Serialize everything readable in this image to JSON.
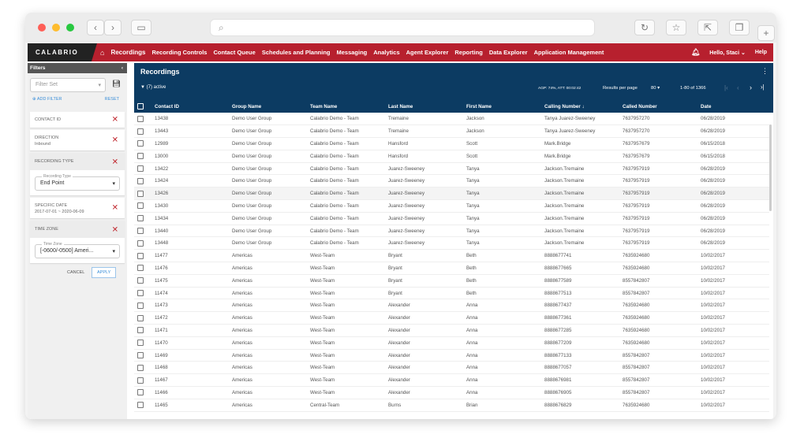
{
  "browser": {
    "back": "‹",
    "forward": "›",
    "search_icon": "⌕"
  },
  "nav": {
    "logo": "CALABRIO",
    "items": [
      "Recordings",
      "Recording Controls",
      "Contact Queue",
      "Schedules and Planning",
      "Messaging",
      "Analytics",
      "Agent Explorer",
      "Reporting",
      "Data Explorer",
      "Application Management"
    ],
    "user": "Hello, Staci",
    "help": "Help"
  },
  "filters": {
    "title": "Filters",
    "filter_set_placeholder": "Filter Set",
    "add_filter": "ADD FILTER",
    "reset": "RESET",
    "cards": [
      {
        "title": "CONTACT ID",
        "value": ""
      },
      {
        "title": "DIRECTION",
        "value": "Inbound"
      },
      {
        "title": "RECORDING TYPE",
        "select_label": "Recording Type",
        "select_value": "End Point"
      },
      {
        "title": "SPECIFIC DATE",
        "value": "2017-07-01 ~ 2020-06-09"
      },
      {
        "title": "TIME ZONE",
        "select_label": "Time Zone",
        "select_value": "[-0600/-0500] Ameri..."
      }
    ],
    "cancel": "CANCEL",
    "apply": "APPLY"
  },
  "main": {
    "title": "Recordings",
    "active_filters": "(7) active",
    "stats": "AGP: 74%, ATT: 00:02:42",
    "results_per_page_label": "Results per page",
    "results_per_page": "80",
    "range": "1-80 of 1366",
    "columns": [
      "Contact ID",
      "Group Name",
      "Team Name",
      "Last Name",
      "First Name",
      "Calling Number ↓",
      "Called Number",
      "Date"
    ],
    "rows": [
      [
        "13438",
        "Demo User Group",
        "Calabrio Demo - Team",
        "Tremaine",
        "Jackson",
        "Tanya Juarez-Sweeney",
        "7637957270",
        "06/28/2019"
      ],
      [
        "13443",
        "Demo User Group",
        "Calabrio Demo - Team",
        "Tremaine",
        "Jackson",
        "Tanya Juarez-Sweeney",
        "7637957270",
        "06/28/2019"
      ],
      [
        "12989",
        "Demo User Group",
        "Calabrio Demo - Team",
        "Hansford",
        "Scott",
        "Mark.Bridge",
        "7637957679",
        "06/15/2018"
      ],
      [
        "13000",
        "Demo User Group",
        "Calabrio Demo - Team",
        "Hansford",
        "Scott",
        "Mark.Bridge",
        "7637957679",
        "06/15/2018"
      ],
      [
        "13422",
        "Demo User Group",
        "Calabrio Demo - Team",
        "Juarez-Sweeney",
        "Tanya",
        "Jackson.Tremaine",
        "7637957919",
        "06/28/2019"
      ],
      [
        "13424",
        "Demo User Group",
        "Calabrio Demo - Team",
        "Juarez-Sweeney",
        "Tanya",
        "Jackson.Tremaine",
        "7637957919",
        "06/28/2019"
      ],
      [
        "13426",
        "Demo User Group",
        "Calabrio Demo - Team",
        "Juarez-Sweeney",
        "Tanya",
        "Jackson.Tremaine",
        "7637957919",
        "06/28/2019"
      ],
      [
        "13430",
        "Demo User Group",
        "Calabrio Demo - Team",
        "Juarez-Sweeney",
        "Tanya",
        "Jackson.Tremaine",
        "7637957919",
        "06/28/2019"
      ],
      [
        "13434",
        "Demo User Group",
        "Calabrio Demo - Team",
        "Juarez-Sweeney",
        "Tanya",
        "Jackson.Tremaine",
        "7637957919",
        "06/28/2019"
      ],
      [
        "13440",
        "Demo User Group",
        "Calabrio Demo - Team",
        "Juarez-Sweeney",
        "Tanya",
        "Jackson.Tremaine",
        "7637957919",
        "06/28/2019"
      ],
      [
        "13448",
        "Demo User Group",
        "Calabrio Demo - Team",
        "Juarez-Sweeney",
        "Tanya",
        "Jackson.Tremaine",
        "7637957919",
        "06/28/2019"
      ],
      [
        "11477",
        "Americas",
        "West-Team",
        "Bryant",
        "Beth",
        "8888677741",
        "7635924680",
        "10/02/2017"
      ],
      [
        "11476",
        "Americas",
        "West-Team",
        "Bryant",
        "Beth",
        "8888677665",
        "7635924680",
        "10/02/2017"
      ],
      [
        "11475",
        "Americas",
        "West-Team",
        "Bryant",
        "Beth",
        "8888677589",
        "8557842807",
        "10/02/2017"
      ],
      [
        "11474",
        "Americas",
        "West-Team",
        "Bryant",
        "Beth",
        "8888677513",
        "8557842807",
        "10/02/2017"
      ],
      [
        "11473",
        "Americas",
        "West-Team",
        "Alexander",
        "Anna",
        "8888677437",
        "7635924680",
        "10/02/2017"
      ],
      [
        "11472",
        "Americas",
        "West-Team",
        "Alexander",
        "Anna",
        "8888677361",
        "7635924680",
        "10/02/2017"
      ],
      [
        "11471",
        "Americas",
        "West-Team",
        "Alexander",
        "Anna",
        "8888677285",
        "7635924680",
        "10/02/2017"
      ],
      [
        "11470",
        "Americas",
        "West-Team",
        "Alexander",
        "Anna",
        "8888677209",
        "7635924680",
        "10/02/2017"
      ],
      [
        "11469",
        "Americas",
        "West-Team",
        "Alexander",
        "Anna",
        "8888677133",
        "8557842807",
        "10/02/2017"
      ],
      [
        "11468",
        "Americas",
        "West-Team",
        "Alexander",
        "Anna",
        "8888677057",
        "8557842807",
        "10/02/2017"
      ],
      [
        "11467",
        "Americas",
        "West-Team",
        "Alexander",
        "Anna",
        "8888676981",
        "8557842807",
        "10/02/2017"
      ],
      [
        "11466",
        "Americas",
        "West-Team",
        "Alexander",
        "Anna",
        "8888676905",
        "8557842807",
        "10/02/2017"
      ],
      [
        "11465",
        "Americas",
        "Central-Team",
        "Burns",
        "Brian",
        "8888676829",
        "7635924680",
        "10/02/2017"
      ]
    ]
  }
}
